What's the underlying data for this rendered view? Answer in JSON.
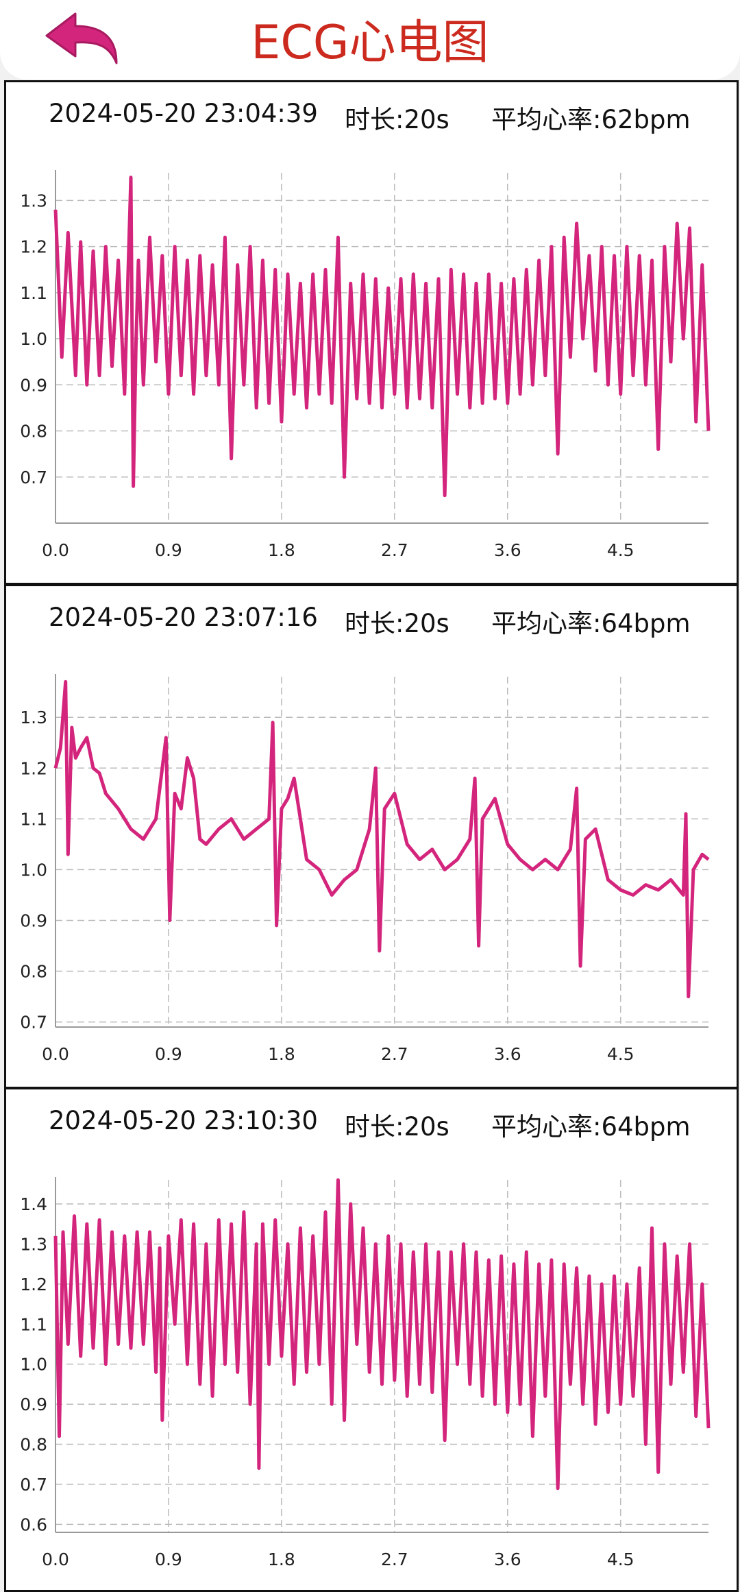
{
  "header": {
    "title": "ECG心电图",
    "back_icon": "back-arrow-icon",
    "accent_color": "#d4257d",
    "title_color": "#cc2a1e"
  },
  "records": [
    {
      "timestamp": "2024-05-20 23:04:39",
      "duration": "时长:20s",
      "avg_heart_rate": "平均心率:62bpm"
    },
    {
      "timestamp": "2024-05-20 23:07:16",
      "duration": "时长:20s",
      "avg_heart_rate": "平均心率:64bpm"
    },
    {
      "timestamp": "2024-05-20 23:10:30",
      "duration": "时长:20s",
      "avg_heart_rate": "平均心率:64bpm"
    }
  ],
  "chart_data": [
    {
      "type": "line",
      "color": "#d4257d",
      "x_ticks": [
        "0.0",
        "0.9",
        "1.8",
        "2.7",
        "3.6",
        "4.5"
      ],
      "y_ticks": [
        "0.7",
        "0.8",
        "0.9",
        "1.0",
        "1.1",
        "1.2",
        "1.3"
      ],
      "xlim": [
        0,
        5.2
      ],
      "ylim": [
        0.6,
        1.36
      ],
      "grid": true,
      "x": [
        0.0,
        0.05,
        0.1,
        0.16,
        0.2,
        0.25,
        0.3,
        0.35,
        0.4,
        0.45,
        0.5,
        0.55,
        0.6,
        0.62,
        0.64,
        0.66,
        0.7,
        0.75,
        0.8,
        0.85,
        0.9,
        0.95,
        1.0,
        1.05,
        1.1,
        1.15,
        1.2,
        1.25,
        1.3,
        1.35,
        1.4,
        1.45,
        1.5,
        1.55,
        1.6,
        1.65,
        1.7,
        1.75,
        1.8,
        1.85,
        1.9,
        1.95,
        2.0,
        2.05,
        2.1,
        2.15,
        2.2,
        2.25,
        2.3,
        2.35,
        2.4,
        2.45,
        2.5,
        2.55,
        2.6,
        2.65,
        2.7,
        2.75,
        2.8,
        2.85,
        2.9,
        2.95,
        3.0,
        3.05,
        3.1,
        3.15,
        3.2,
        3.25,
        3.3,
        3.35,
        3.4,
        3.45,
        3.5,
        3.55,
        3.6,
        3.65,
        3.7,
        3.75,
        3.8,
        3.85,
        3.9,
        3.95,
        4.0,
        4.05,
        4.1,
        4.15,
        4.2,
        4.25,
        4.3,
        4.35,
        4.4,
        4.45,
        4.5,
        4.55,
        4.6,
        4.65,
        4.7,
        4.75,
        4.8,
        4.85,
        4.9,
        4.95,
        5.0,
        5.05,
        5.1,
        5.15,
        5.2
      ],
      "y": [
        1.28,
        0.96,
        1.23,
        0.92,
        1.21,
        0.9,
        1.19,
        0.92,
        1.2,
        0.94,
        1.17,
        0.88,
        1.35,
        0.68,
        0.98,
        1.17,
        0.9,
        1.22,
        0.95,
        1.18,
        0.88,
        1.2,
        0.92,
        1.17,
        0.88,
        1.18,
        0.92,
        1.16,
        0.9,
        1.22,
        0.74,
        1.16,
        0.9,
        1.2,
        0.85,
        1.17,
        0.86,
        1.15,
        0.82,
        1.14,
        0.88,
        1.12,
        0.85,
        1.14,
        0.88,
        1.15,
        0.86,
        1.22,
        0.7,
        1.12,
        0.87,
        1.14,
        0.86,
        1.13,
        0.85,
        1.11,
        0.88,
        1.13,
        0.85,
        1.14,
        0.87,
        1.12,
        0.85,
        1.13,
        0.66,
        1.15,
        0.88,
        1.14,
        0.85,
        1.12,
        0.86,
        1.14,
        0.87,
        1.12,
        0.86,
        1.13,
        0.88,
        1.15,
        0.9,
        1.17,
        0.92,
        1.2,
        0.75,
        1.22,
        0.96,
        1.25,
        1.0,
        1.18,
        0.93,
        1.2,
        0.9,
        1.18,
        0.88,
        1.2,
        0.92,
        1.18,
        0.9,
        1.17,
        0.76,
        1.2,
        0.95,
        1.25,
        1.0,
        1.24,
        0.82,
        1.16,
        0.8
      ]
    },
    {
      "type": "line",
      "color": "#d4257d",
      "x_ticks": [
        "0.0",
        "0.9",
        "1.8",
        "2.7",
        "3.6",
        "4.5"
      ],
      "y_ticks": [
        "0.7",
        "0.8",
        "0.9",
        "1.0",
        "1.1",
        "1.2",
        "1.3"
      ],
      "xlim": [
        0,
        5.2
      ],
      "ylim": [
        0.69,
        1.38
      ],
      "grid": true,
      "x": [
        0.0,
        0.04,
        0.08,
        0.1,
        0.13,
        0.16,
        0.2,
        0.25,
        0.3,
        0.35,
        0.4,
        0.5,
        0.6,
        0.7,
        0.8,
        0.85,
        0.88,
        0.91,
        0.95,
        1.0,
        1.05,
        1.1,
        1.15,
        1.2,
        1.3,
        1.4,
        1.5,
        1.6,
        1.7,
        1.73,
        1.76,
        1.8,
        1.85,
        1.9,
        1.95,
        2.0,
        2.1,
        2.2,
        2.3,
        2.4,
        2.5,
        2.55,
        2.58,
        2.62,
        2.7,
        2.8,
        2.9,
        3.0,
        3.1,
        3.2,
        3.3,
        3.34,
        3.37,
        3.4,
        3.5,
        3.6,
        3.7,
        3.8,
        3.9,
        4.0,
        4.1,
        4.15,
        4.18,
        4.22,
        4.3,
        4.4,
        4.5,
        4.6,
        4.7,
        4.8,
        4.9,
        5.0,
        5.02,
        5.04,
        5.08,
        5.15,
        5.2
      ],
      "y": [
        1.2,
        1.24,
        1.37,
        1.03,
        1.28,
        1.22,
        1.24,
        1.26,
        1.2,
        1.19,
        1.15,
        1.12,
        1.08,
        1.06,
        1.1,
        1.2,
        1.26,
        0.9,
        1.15,
        1.12,
        1.22,
        1.18,
        1.06,
        1.05,
        1.08,
        1.1,
        1.06,
        1.08,
        1.1,
        1.29,
        0.89,
        1.12,
        1.14,
        1.18,
        1.1,
        1.02,
        1.0,
        0.95,
        0.98,
        1.0,
        1.08,
        1.2,
        0.84,
        1.12,
        1.15,
        1.05,
        1.02,
        1.04,
        1.0,
        1.02,
        1.06,
        1.18,
        0.85,
        1.1,
        1.14,
        1.05,
        1.02,
        1.0,
        1.02,
        1.0,
        1.04,
        1.16,
        0.81,
        1.06,
        1.08,
        0.98,
        0.96,
        0.95,
        0.97,
        0.96,
        0.98,
        0.95,
        1.11,
        0.75,
        1.0,
        1.03,
        1.02
      ]
    },
    {
      "type": "line",
      "color": "#d4257d",
      "x_ticks": [
        "0.0",
        "0.9",
        "1.8",
        "2.7",
        "3.6",
        "4.5"
      ],
      "y_ticks": [
        "0.6",
        "0.7",
        "0.8",
        "0.9",
        "1.0",
        "1.1",
        "1.2",
        "1.3",
        "1.4"
      ],
      "xlim": [
        0,
        5.2
      ],
      "ylim": [
        0.58,
        1.46
      ],
      "grid": true,
      "x": [
        0.0,
        0.03,
        0.06,
        0.1,
        0.15,
        0.2,
        0.25,
        0.3,
        0.35,
        0.4,
        0.45,
        0.5,
        0.55,
        0.6,
        0.65,
        0.7,
        0.75,
        0.8,
        0.83,
        0.85,
        0.9,
        0.95,
        1.0,
        1.05,
        1.1,
        1.15,
        1.2,
        1.25,
        1.3,
        1.35,
        1.4,
        1.45,
        1.5,
        1.55,
        1.6,
        1.62,
        1.65,
        1.7,
        1.75,
        1.8,
        1.85,
        1.9,
        1.95,
        2.0,
        2.05,
        2.1,
        2.15,
        2.2,
        2.25,
        2.3,
        2.35,
        2.4,
        2.45,
        2.5,
        2.55,
        2.6,
        2.65,
        2.7,
        2.75,
        2.8,
        2.85,
        2.9,
        2.95,
        3.0,
        3.05,
        3.1,
        3.15,
        3.2,
        3.25,
        3.3,
        3.35,
        3.4,
        3.45,
        3.5,
        3.55,
        3.6,
        3.65,
        3.7,
        3.75,
        3.8,
        3.85,
        3.9,
        3.95,
        4.0,
        4.05,
        4.1,
        4.15,
        4.2,
        4.25,
        4.3,
        4.35,
        4.4,
        4.45,
        4.5,
        4.55,
        4.6,
        4.65,
        4.7,
        4.75,
        4.8,
        4.85,
        4.9,
        4.95,
        5.0,
        5.05,
        5.1,
        5.15,
        5.2
      ],
      "y": [
        1.32,
        0.82,
        1.33,
        1.05,
        1.37,
        1.02,
        1.35,
        1.04,
        1.36,
        1.0,
        1.33,
        1.05,
        1.32,
        1.04,
        1.33,
        1.05,
        1.33,
        0.98,
        1.29,
        0.86,
        1.32,
        1.1,
        1.36,
        1.0,
        1.35,
        0.95,
        1.3,
        0.92,
        1.36,
        1.0,
        1.35,
        0.98,
        1.38,
        0.9,
        1.3,
        0.74,
        1.35,
        1.0,
        1.36,
        1.02,
        1.3,
        0.95,
        1.34,
        0.98,
        1.32,
        1.0,
        1.38,
        0.9,
        1.46,
        0.86,
        1.4,
        1.05,
        1.34,
        0.98,
        1.3,
        0.95,
        1.32,
        0.96,
        1.3,
        0.92,
        1.28,
        0.95,
        1.3,
        0.93,
        1.28,
        0.81,
        1.28,
        1.0,
        1.3,
        0.95,
        1.28,
        0.92,
        1.26,
        0.9,
        1.27,
        0.88,
        1.25,
        0.9,
        1.28,
        0.82,
        1.25,
        0.92,
        1.26,
        0.69,
        1.25,
        0.95,
        1.24,
        0.9,
        1.22,
        0.85,
        1.2,
        0.88,
        1.22,
        0.9,
        1.2,
        0.92,
        1.24,
        0.8,
        1.34,
        0.73,
        1.3,
        0.95,
        1.27,
        0.98,
        1.3,
        0.87,
        1.2,
        0.84
      ]
    }
  ]
}
